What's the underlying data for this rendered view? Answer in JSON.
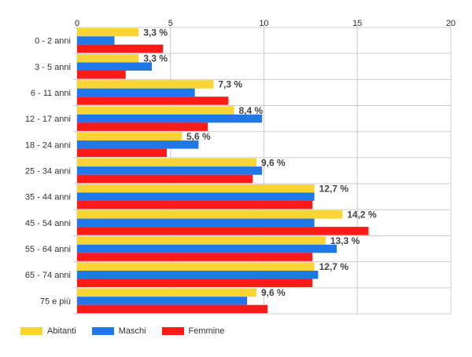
{
  "chart_data": {
    "type": "bar",
    "orientation": "horizontal",
    "categories": [
      "0 - 2 anni",
      "3 - 5 anni",
      "6 - 11 anni",
      "12 - 17 anni",
      "18 - 24 anni",
      "25 - 34 anni",
      "35 - 44 anni",
      "45 - 54 anni",
      "55 - 64 anni",
      "65 - 74 anni",
      "75 e più"
    ],
    "series": [
      {
        "name": "Abitanti",
        "color": "#f9d433",
        "values": [
          3.3,
          3.3,
          7.3,
          8.4,
          5.6,
          9.6,
          12.7,
          14.2,
          13.3,
          12.7,
          9.6
        ]
      },
      {
        "name": "Maschi",
        "color": "#1f77e8",
        "values": [
          2.0,
          4.0,
          6.3,
          9.9,
          6.5,
          9.9,
          12.7,
          12.7,
          13.9,
          12.9,
          9.1
        ]
      },
      {
        "name": "Femmine",
        "color": "#ff1a1a",
        "values": [
          4.6,
          2.6,
          8.1,
          7.0,
          4.8,
          9.4,
          12.6,
          15.6,
          12.6,
          12.6,
          10.2
        ]
      }
    ],
    "data_labels": [
      "3,3 %",
      "3,3 %",
      "7,3 %",
      "8,4 %",
      "5,6 %",
      "9,6 %",
      "12,7 %",
      "14,2 %",
      "13,3 %",
      "12,7 %",
      "9,6 %"
    ],
    "x_ticks": [
      "0",
      "5",
      "10",
      "15",
      "20"
    ],
    "xlim": [
      0,
      20
    ],
    "grid": true,
    "legend_position": "bottom-left",
    "title": "",
    "xlabel": "",
    "ylabel": ""
  }
}
